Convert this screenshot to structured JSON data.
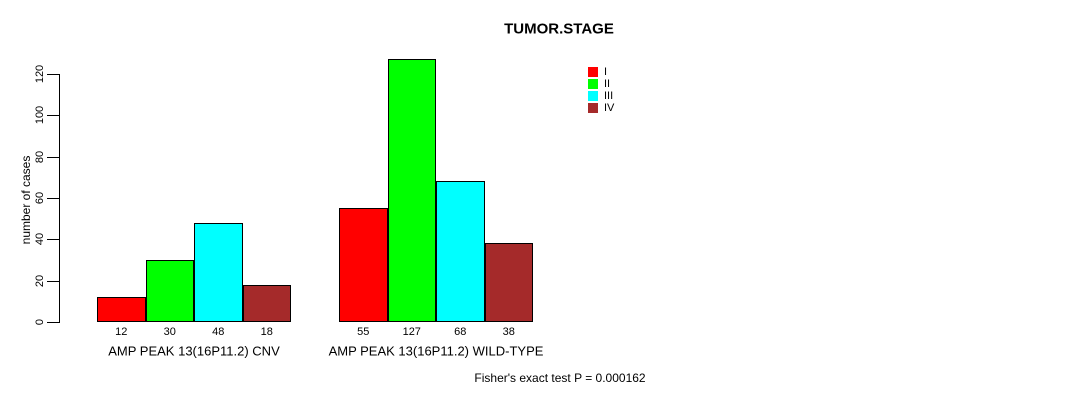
{
  "chart_data": {
    "type": "bar",
    "title": "TUMOR.STAGE",
    "ylabel": "number of cases",
    "xlabel": "",
    "yticks": [
      0,
      20,
      40,
      60,
      80,
      100,
      120
    ],
    "ylim": [
      0,
      127
    ],
    "grid": false,
    "legend_position": "top-right-inside",
    "series": [
      {
        "name": "I",
        "color": "#ff0000"
      },
      {
        "name": "II",
        "color": "#00ff00"
      },
      {
        "name": "III",
        "color": "#00ffff"
      },
      {
        "name": "IV",
        "color": "#a52a2a"
      }
    ],
    "groups": [
      {
        "label": "AMP PEAK 13(16P11.2) CNV",
        "values": [
          12,
          30,
          48,
          18
        ]
      },
      {
        "label": "AMP PEAK 13(16P11.2) WILD-TYPE",
        "values": [
          55,
          127,
          68,
          38
        ]
      }
    ],
    "footer": "Fisher's exact test P = 0.000162"
  }
}
